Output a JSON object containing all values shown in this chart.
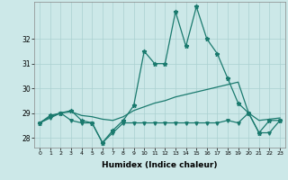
{
  "xlabel": "Humidex (Indice chaleur)",
  "x": [
    0,
    1,
    2,
    3,
    4,
    5,
    6,
    7,
    8,
    9,
    10,
    11,
    12,
    13,
    14,
    15,
    16,
    17,
    18,
    19,
    20,
    21,
    22,
    23
  ],
  "line_top": [
    28.6,
    28.9,
    29.0,
    29.1,
    28.7,
    28.6,
    27.8,
    28.3,
    28.7,
    29.3,
    31.5,
    31.0,
    31.0,
    33.1,
    31.7,
    33.3,
    32.0,
    31.4,
    30.4,
    29.4,
    29.0,
    28.2,
    28.7,
    28.7
  ],
  "line_bot": [
    28.6,
    28.8,
    29.0,
    28.7,
    28.6,
    28.6,
    27.8,
    28.2,
    28.6,
    28.6,
    28.6,
    28.6,
    28.6,
    28.6,
    28.6,
    28.6,
    28.6,
    28.6,
    28.7,
    28.6,
    29.0,
    28.2,
    28.2,
    28.7
  ],
  "line_mid": [
    28.6,
    28.85,
    29.0,
    29.05,
    28.9,
    28.85,
    28.75,
    28.7,
    28.85,
    29.1,
    29.25,
    29.4,
    29.5,
    29.65,
    29.75,
    29.85,
    29.95,
    30.05,
    30.15,
    30.25,
    29.0,
    28.7,
    28.75,
    28.8
  ],
  "color": "#1a7a6e",
  "bg_color": "#cce8e8",
  "ylim": [
    27.6,
    33.5
  ],
  "yticks": [
    28,
    29,
    30,
    31,
    32
  ],
  "grid_color": "#aad0d0"
}
